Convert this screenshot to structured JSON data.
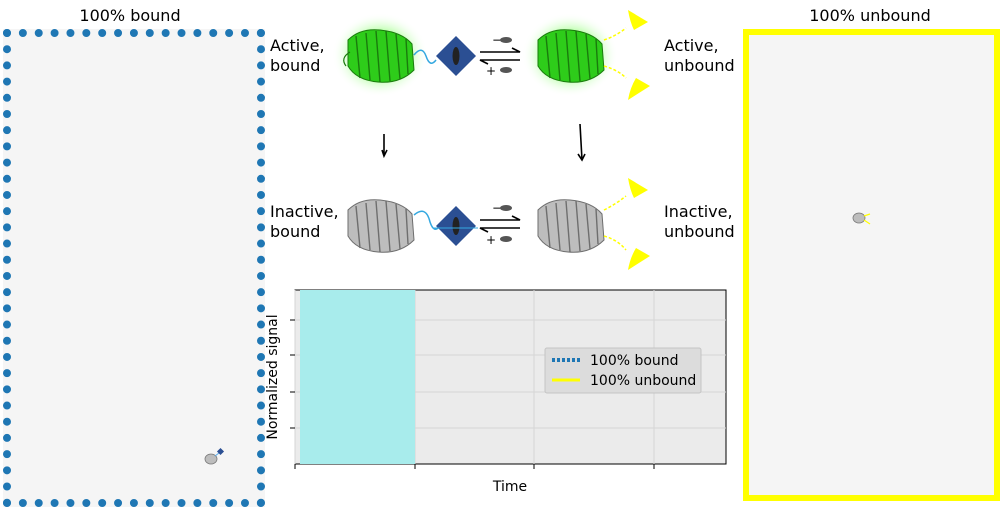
{
  "left_panel": {
    "title": "100% bound"
  },
  "right_panel": {
    "title": "100% unbound"
  },
  "states": {
    "active_bound": [
      "Active,",
      "bound"
    ],
    "active_unbound": [
      "Active,",
      "unbound"
    ],
    "inactive_bound": [
      "Inactive,",
      "bound"
    ],
    "inactive_unbound": [
      "Inactive,",
      "unbound"
    ]
  },
  "equilibrium": {
    "forward_sign": "−",
    "reverse_sign": "+"
  },
  "colors": {
    "bound": "#1f77b4",
    "unbound": "#ffff00",
    "active_protein": "#2ecc1a",
    "inactive_protein": "#9e9e9e",
    "ligand_diamond": "#2b4f93",
    "highlight": "#a8ecec"
  },
  "chart_data": {
    "type": "line",
    "xlabel": "Time",
    "ylabel": "Normalized signal",
    "series": [
      {
        "name": "100% bound",
        "style": "dotted",
        "color": "#1f77b4",
        "values": []
      },
      {
        "name": "100% unbound",
        "style": "solid",
        "color": "#ffff00",
        "values": []
      }
    ],
    "grid": true,
    "legend_position": "right",
    "highlight_region": "first segment of time axis"
  }
}
